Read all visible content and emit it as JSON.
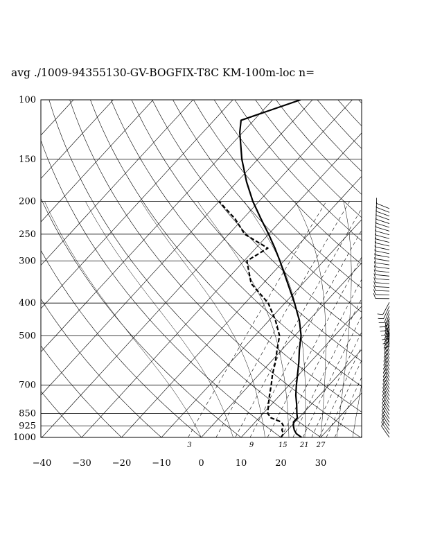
{
  "title": "avg ./1009-94355130-GV-BOGFIX-T8C KM-100m-loc n=",
  "chart_data": {
    "type": "skew-t log-p",
    "pressure_levels": [
      100,
      150,
      200,
      250,
      300,
      400,
      500,
      700,
      850,
      925,
      1000
    ],
    "pressure_tick_labels": [
      "100",
      "150",
      "200",
      "250",
      "300",
      "400",
      "500",
      "700",
      "850",
      "925",
      "1000"
    ],
    "temperature_ticks": [
      -40,
      -30,
      -20,
      -10,
      0,
      10,
      20,
      30
    ],
    "temperature_tick_labels": [
      "−40",
      "−30",
      "−20",
      "−10",
      "0",
      "10",
      "20",
      "30"
    ],
    "mixing_ratio_values": [
      3,
      9,
      15,
      21,
      27
    ],
    "mixing_ratio_labels": [
      "3",
      "9",
      "15",
      "21",
      "27"
    ],
    "temperature_profile": [
      [
        1000,
        25.2
      ],
      [
        975,
        23.0
      ],
      [
        950,
        21.6
      ],
      [
        925,
        20.5
      ],
      [
        900,
        19.6
      ],
      [
        875,
        19.6
      ],
      [
        850,
        18.5
      ],
      [
        800,
        16.4
      ],
      [
        750,
        14.0
      ],
      [
        700,
        11.8
      ],
      [
        650,
        9.6
      ],
      [
        600,
        7.2
      ],
      [
        550,
        4.4
      ],
      [
        500,
        1.6
      ],
      [
        450,
        -2.4
      ],
      [
        400,
        -7.6
      ],
      [
        350,
        -13.8
      ],
      [
        300,
        -21.0
      ],
      [
        275,
        -25.2
      ],
      [
        250,
        -30.0
      ],
      [
        225,
        -35.5
      ],
      [
        200,
        -41.5
      ],
      [
        175,
        -47.6
      ],
      [
        150,
        -54.0
      ],
      [
        125,
        -60.7
      ],
      [
        115,
        -63.2
      ],
      [
        110,
        -60.0
      ],
      [
        100,
        -53.0
      ]
    ],
    "dewpoint_profile": [
      [
        1000,
        20.0
      ],
      [
        975,
        19.8
      ],
      [
        950,
        18.5
      ],
      [
        925,
        18.0
      ],
      [
        900,
        16.5
      ],
      [
        875,
        13.0
      ],
      [
        850,
        11.2
      ],
      [
        800,
        9.3
      ],
      [
        750,
        7.4
      ],
      [
        700,
        5.5
      ],
      [
        650,
        3.3
      ],
      [
        600,
        1.3
      ],
      [
        550,
        -1.2
      ],
      [
        500,
        -3.8
      ],
      [
        450,
        -8.4
      ],
      [
        400,
        -14.2
      ],
      [
        350,
        -23.0
      ],
      [
        300,
        -29.3
      ],
      [
        275,
        -27.0
      ],
      [
        250,
        -36.0
      ],
      [
        225,
        -42.0
      ],
      [
        200,
        -50.0
      ]
    ],
    "wind_barbs": {
      "pressure_range": [
        1000,
        210
      ],
      "count": 62
    }
  }
}
